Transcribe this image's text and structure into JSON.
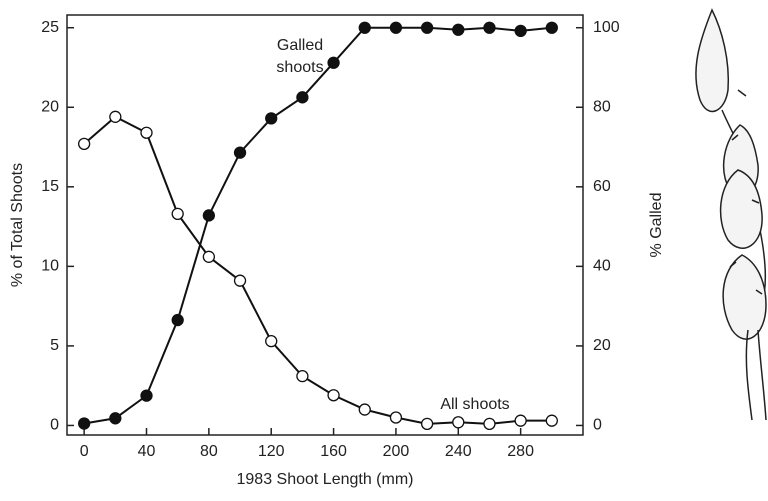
{
  "chart_data": {
    "type": "line",
    "x_label": "1983 Shoot Length (mm)",
    "y_label": "% of Total Shoots",
    "y2_label": "% Galled",
    "x": [
      0,
      20,
      40,
      60,
      80,
      100,
      120,
      140,
      160,
      180,
      200,
      220,
      240,
      260,
      280,
      300
    ],
    "xlim": [
      -11,
      320
    ],
    "xticks": [
      0,
      40,
      80,
      120,
      160,
      200,
      240,
      280
    ],
    "ylim": [
      -0.6,
      25.8
    ],
    "yticks": [
      0,
      5,
      10,
      15,
      20,
      25
    ],
    "y2lim": [
      -2.4,
      103.2
    ],
    "y2ticks": [
      0,
      20,
      40,
      60,
      80,
      100
    ],
    "series": [
      {
        "color": "#111111",
        "marker": "open",
        "values": [
          17.7,
          19.4,
          18.4,
          13.3,
          10.6,
          9.1,
          5.3,
          3.1,
          1.9,
          1.0,
          0.5,
          0.1,
          0.2,
          0.1,
          0.3,
          0.3
        ]
      },
      {
        "color": "#111111",
        "marker": "filled",
        "axis": "y2",
        "values": [
          0.5,
          1.8,
          7.5,
          26.5,
          52.8,
          68.6,
          77.2,
          82.5,
          91.2,
          100,
          100,
          100,
          99.5,
          100,
          99.2,
          100
        ]
      }
    ],
    "annotations": [
      {
        "lines": [
          "Galled",
          "shoots"
        ]
      },
      {
        "lines": [
          "All shoots"
        ]
      }
    ]
  }
}
